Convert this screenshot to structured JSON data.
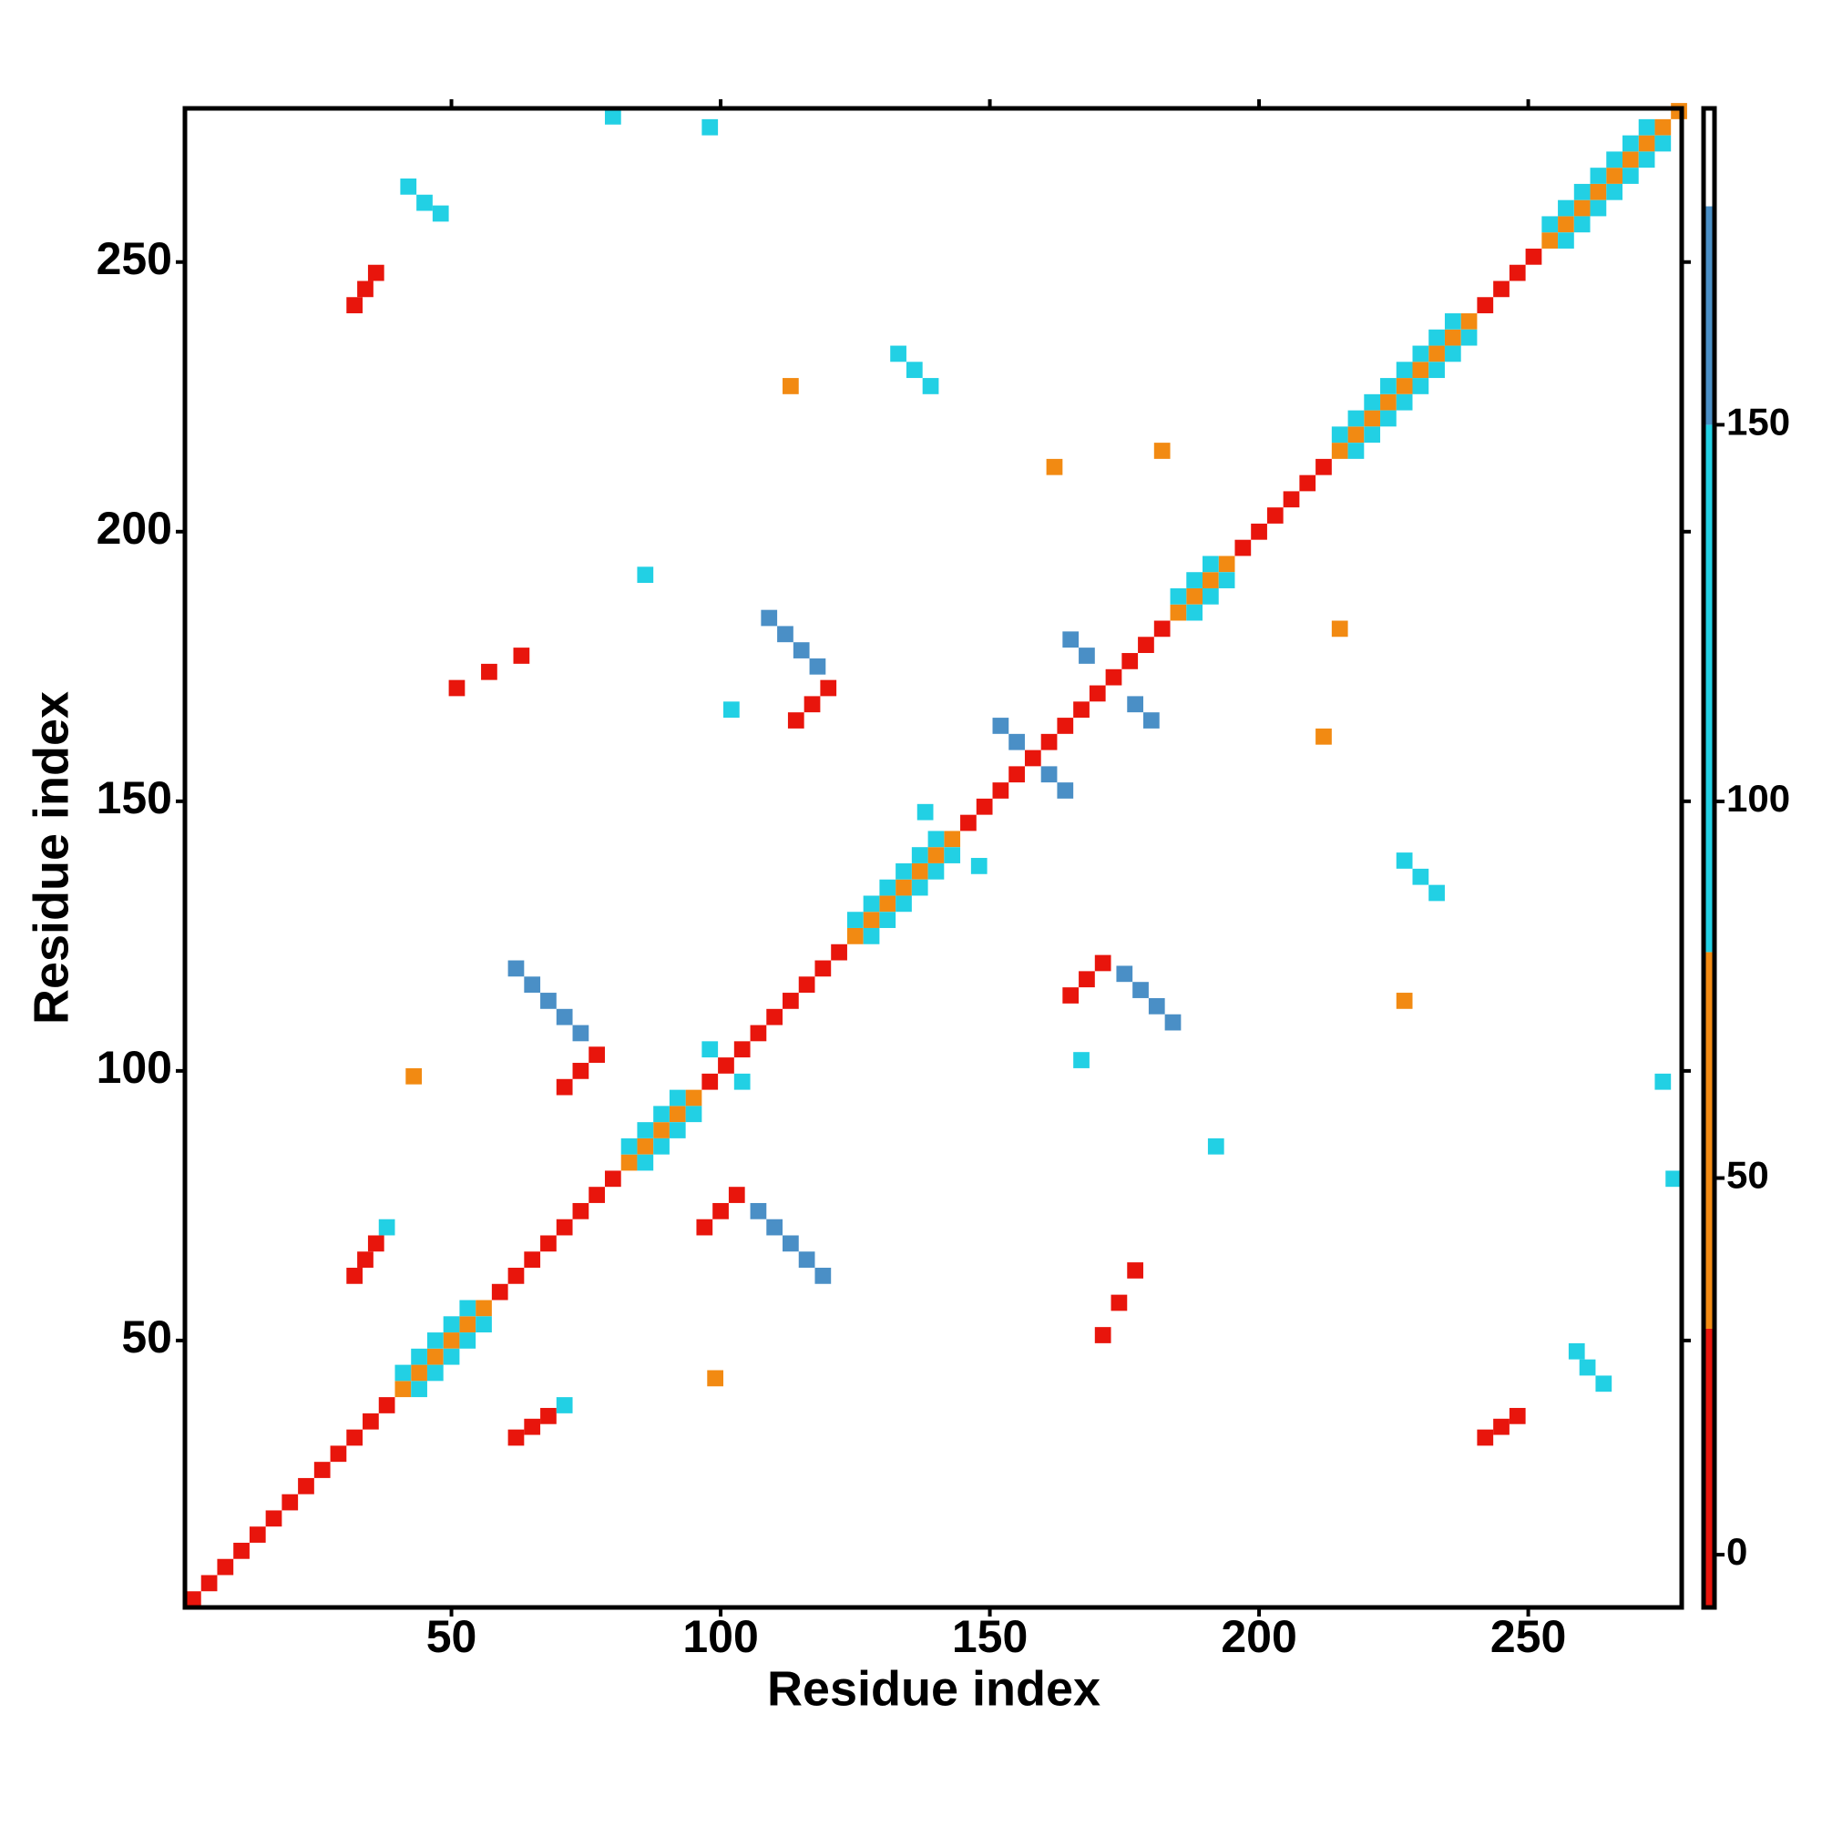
{
  "chart_data": {
    "type": "heatmap",
    "x_label": "Residue index",
    "y_label": "Residue index",
    "xlim": [
      0.5,
      278.5
    ],
    "ylim": [
      0.5,
      278.5
    ],
    "xticks": [
      50,
      100,
      150,
      200,
      250
    ],
    "yticks": [
      50,
      100,
      150,
      200,
      250
    ],
    "colorbar": {
      "lim": [
        -7,
        192
      ],
      "ticks": [
        0,
        50,
        100,
        150
      ],
      "stops": [
        {
          "from": -7,
          "to": 30,
          "color": "#e8150c"
        },
        {
          "from": 30,
          "to": 80,
          "color": "#f28a12"
        },
        {
          "from": 80,
          "to": 150,
          "color": "#22d0e4"
        },
        {
          "from": 150,
          "to": 179,
          "color": "#4a8fc6"
        },
        {
          "from": 179,
          "to": 192,
          "color": "#ffffff"
        }
      ]
    },
    "cells": [
      [
        1,
        1,
        5
      ],
      [
        4,
        4,
        5
      ],
      [
        7,
        7,
        5
      ],
      [
        10,
        10,
        5
      ],
      [
        13,
        13,
        5
      ],
      [
        16,
        16,
        5
      ],
      [
        19,
        19,
        5
      ],
      [
        22,
        22,
        5
      ],
      [
        25,
        25,
        5
      ],
      [
        28,
        28,
        5
      ],
      [
        31,
        31,
        5
      ],
      [
        34,
        34,
        5
      ],
      [
        37,
        37,
        5
      ],
      [
        40,
        40,
        40
      ],
      [
        43,
        43,
        40
      ],
      [
        46,
        46,
        40
      ],
      [
        49,
        49,
        40
      ],
      [
        52,
        52,
        40
      ],
      [
        55,
        55,
        40
      ],
      [
        58,
        58,
        5
      ],
      [
        61,
        61,
        5
      ],
      [
        64,
        64,
        5
      ],
      [
        67,
        67,
        5
      ],
      [
        70,
        70,
        5
      ],
      [
        73,
        73,
        5
      ],
      [
        76,
        76,
        5
      ],
      [
        79,
        79,
        5
      ],
      [
        82,
        82,
        40
      ],
      [
        85,
        85,
        40
      ],
      [
        88,
        88,
        40
      ],
      [
        91,
        91,
        40
      ],
      [
        94,
        94,
        40
      ],
      [
        97,
        97,
        5
      ],
      [
        100,
        100,
        5
      ],
      [
        103,
        103,
        5
      ],
      [
        106,
        106,
        5
      ],
      [
        109,
        109,
        5
      ],
      [
        112,
        112,
        5
      ],
      [
        115,
        115,
        5
      ],
      [
        118,
        118,
        5
      ],
      [
        121,
        121,
        5
      ],
      [
        124,
        124,
        40
      ],
      [
        127,
        127,
        40
      ],
      [
        130,
        130,
        40
      ],
      [
        133,
        133,
        40
      ],
      [
        136,
        136,
        40
      ],
      [
        139,
        139,
        40
      ],
      [
        142,
        142,
        40
      ],
      [
        145,
        145,
        5
      ],
      [
        148,
        148,
        5
      ],
      [
        151,
        151,
        5
      ],
      [
        154,
        154,
        5
      ],
      [
        157,
        157,
        5
      ],
      [
        160,
        160,
        5
      ],
      [
        163,
        163,
        5
      ],
      [
        166,
        166,
        5
      ],
      [
        169,
        169,
        5
      ],
      [
        172,
        172,
        5
      ],
      [
        175,
        175,
        5
      ],
      [
        178,
        178,
        5
      ],
      [
        181,
        181,
        5
      ],
      [
        184,
        184,
        40
      ],
      [
        187,
        187,
        40
      ],
      [
        190,
        190,
        40
      ],
      [
        193,
        193,
        40
      ],
      [
        196,
        196,
        5
      ],
      [
        199,
        199,
        5
      ],
      [
        202,
        202,
        5
      ],
      [
        205,
        205,
        5
      ],
      [
        208,
        208,
        5
      ],
      [
        211,
        211,
        5
      ],
      [
        214,
        214,
        40
      ],
      [
        217,
        217,
        40
      ],
      [
        220,
        220,
        40
      ],
      [
        223,
        223,
        40
      ],
      [
        226,
        226,
        40
      ],
      [
        229,
        229,
        40
      ],
      [
        232,
        232,
        40
      ],
      [
        235,
        235,
        40
      ],
      [
        238,
        238,
        40
      ],
      [
        241,
        241,
        5
      ],
      [
        244,
        244,
        5
      ],
      [
        247,
        247,
        5
      ],
      [
        250,
        250,
        5
      ],
      [
        253,
        253,
        40
      ],
      [
        256,
        256,
        40
      ],
      [
        259,
        259,
        40
      ],
      [
        262,
        262,
        40
      ],
      [
        265,
        265,
        40
      ],
      [
        268,
        268,
        40
      ],
      [
        271,
        271,
        40
      ],
      [
        274,
        274,
        40
      ],
      [
        277,
        277,
        40
      ],
      [
        40,
        43,
        100
      ],
      [
        43,
        46,
        100
      ],
      [
        46,
        49,
        100
      ],
      [
        49,
        52,
        100
      ],
      [
        52,
        55,
        100
      ],
      [
        43,
        40,
        100
      ],
      [
        46,
        43,
        100
      ],
      [
        49,
        46,
        100
      ],
      [
        52,
        49,
        100
      ],
      [
        55,
        52,
        100
      ],
      [
        82,
        85,
        100
      ],
      [
        85,
        88,
        100
      ],
      [
        88,
        91,
        100
      ],
      [
        91,
        94,
        100
      ],
      [
        85,
        82,
        100
      ],
      [
        88,
        85,
        100
      ],
      [
        91,
        88,
        100
      ],
      [
        94,
        91,
        100
      ],
      [
        124,
        127,
        100
      ],
      [
        127,
        130,
        100
      ],
      [
        130,
        133,
        100
      ],
      [
        133,
        136,
        100
      ],
      [
        136,
        139,
        100
      ],
      [
        139,
        142,
        100
      ],
      [
        127,
        124,
        100
      ],
      [
        130,
        127,
        100
      ],
      [
        133,
        130,
        100
      ],
      [
        136,
        133,
        100
      ],
      [
        139,
        136,
        100
      ],
      [
        142,
        139,
        100
      ],
      [
        184,
        187,
        100
      ],
      [
        187,
        190,
        100
      ],
      [
        190,
        193,
        100
      ],
      [
        187,
        184,
        100
      ],
      [
        190,
        187,
        100
      ],
      [
        193,
        190,
        100
      ],
      [
        214,
        217,
        100
      ],
      [
        217,
        220,
        100
      ],
      [
        220,
        223,
        100
      ],
      [
        223,
        226,
        100
      ],
      [
        226,
        229,
        100
      ],
      [
        229,
        232,
        100
      ],
      [
        232,
        235,
        100
      ],
      [
        235,
        238,
        100
      ],
      [
        217,
        214,
        100
      ],
      [
        220,
        217,
        100
      ],
      [
        223,
        220,
        100
      ],
      [
        226,
        223,
        100
      ],
      [
        229,
        226,
        100
      ],
      [
        232,
        229,
        100
      ],
      [
        235,
        232,
        100
      ],
      [
        238,
        235,
        100
      ],
      [
        253,
        256,
        100
      ],
      [
        256,
        259,
        100
      ],
      [
        259,
        262,
        100
      ],
      [
        262,
        265,
        100
      ],
      [
        265,
        268,
        100
      ],
      [
        268,
        271,
        100
      ],
      [
        271,
        274,
        100
      ],
      [
        256,
        253,
        100
      ],
      [
        259,
        256,
        100
      ],
      [
        262,
        259,
        100
      ],
      [
        265,
        262,
        100
      ],
      [
        268,
        265,
        100
      ],
      [
        271,
        268,
        100
      ],
      [
        274,
        271,
        100
      ],
      [
        31,
        241,
        5
      ],
      [
        33,
        244,
        5
      ],
      [
        35,
        247,
        5
      ],
      [
        241,
        31,
        5
      ],
      [
        244,
        33,
        5
      ],
      [
        247,
        35,
        5
      ],
      [
        31,
        61,
        5
      ],
      [
        33,
        64,
        5
      ],
      [
        35,
        67,
        5
      ],
      [
        37,
        70,
        100
      ],
      [
        61,
        31,
        5
      ],
      [
        64,
        33,
        5
      ],
      [
        67,
        35,
        5
      ],
      [
        70,
        37,
        100
      ],
      [
        61,
        118,
        160
      ],
      [
        64,
        115,
        160
      ],
      [
        67,
        112,
        160
      ],
      [
        70,
        109,
        160
      ],
      [
        73,
        106,
        160
      ],
      [
        70,
        96,
        5
      ],
      [
        73,
        99,
        5
      ],
      [
        76,
        102,
        5
      ],
      [
        118,
        61,
        160
      ],
      [
        115,
        64,
        160
      ],
      [
        112,
        67,
        160
      ],
      [
        109,
        70,
        160
      ],
      [
        106,
        73,
        160
      ],
      [
        96,
        70,
        5
      ],
      [
        99,
        73,
        5
      ],
      [
        102,
        76,
        5
      ],
      [
        108,
        183,
        160
      ],
      [
        111,
        180,
        160
      ],
      [
        114,
        177,
        160
      ],
      [
        117,
        174,
        160
      ],
      [
        113,
        164,
        5
      ],
      [
        116,
        167,
        5
      ],
      [
        119,
        170,
        5
      ],
      [
        183,
        108,
        160
      ],
      [
        180,
        111,
        160
      ],
      [
        177,
        114,
        160
      ],
      [
        174,
        117,
        160
      ],
      [
        164,
        113,
        5
      ],
      [
        167,
        116,
        5
      ],
      [
        170,
        119,
        5
      ],
      [
        151,
        163,
        160
      ],
      [
        154,
        160,
        160
      ],
      [
        160,
        154,
        160
      ],
      [
        163,
        151,
        160
      ],
      [
        164,
        179,
        160
      ],
      [
        167,
        176,
        160
      ],
      [
        176,
        167,
        160
      ],
      [
        179,
        164,
        160
      ],
      [
        97,
        103,
        100
      ],
      [
        103,
        97,
        100
      ],
      [
        41,
        263,
        100
      ],
      [
        44,
        260,
        100
      ],
      [
        47,
        258,
        100
      ],
      [
        263,
        41,
        100
      ],
      [
        260,
        44,
        100
      ],
      [
        258,
        47,
        100
      ],
      [
        132,
        232,
        100
      ],
      [
        135,
        229,
        100
      ],
      [
        138,
        226,
        100
      ],
      [
        232,
        132,
        100
      ],
      [
        229,
        135,
        100
      ],
      [
        226,
        138,
        100
      ],
      [
        161,
        211,
        50
      ],
      [
        181,
        214,
        50
      ],
      [
        211,
        161,
        50
      ],
      [
        214,
        181,
        50
      ],
      [
        85,
        191,
        100
      ],
      [
        191,
        85,
        100
      ],
      [
        101,
        166,
        100
      ],
      [
        166,
        101,
        100
      ],
      [
        42,
        98,
        50
      ],
      [
        98,
        42,
        50
      ],
      [
        50,
        170,
        20
      ],
      [
        56,
        173,
        20
      ],
      [
        62,
        176,
        20
      ],
      [
        170,
        50,
        20
      ],
      [
        173,
        56,
        20
      ],
      [
        176,
        62,
        20
      ],
      [
        112,
        226,
        50
      ],
      [
        226,
        112,
        50
      ],
      [
        79,
        276,
        100
      ],
      [
        276,
        79,
        100
      ],
      [
        97,
        274,
        100
      ],
      [
        274,
        97,
        100
      ],
      [
        137,
        147,
        100
      ],
      [
        147,
        137,
        100
      ]
    ]
  }
}
